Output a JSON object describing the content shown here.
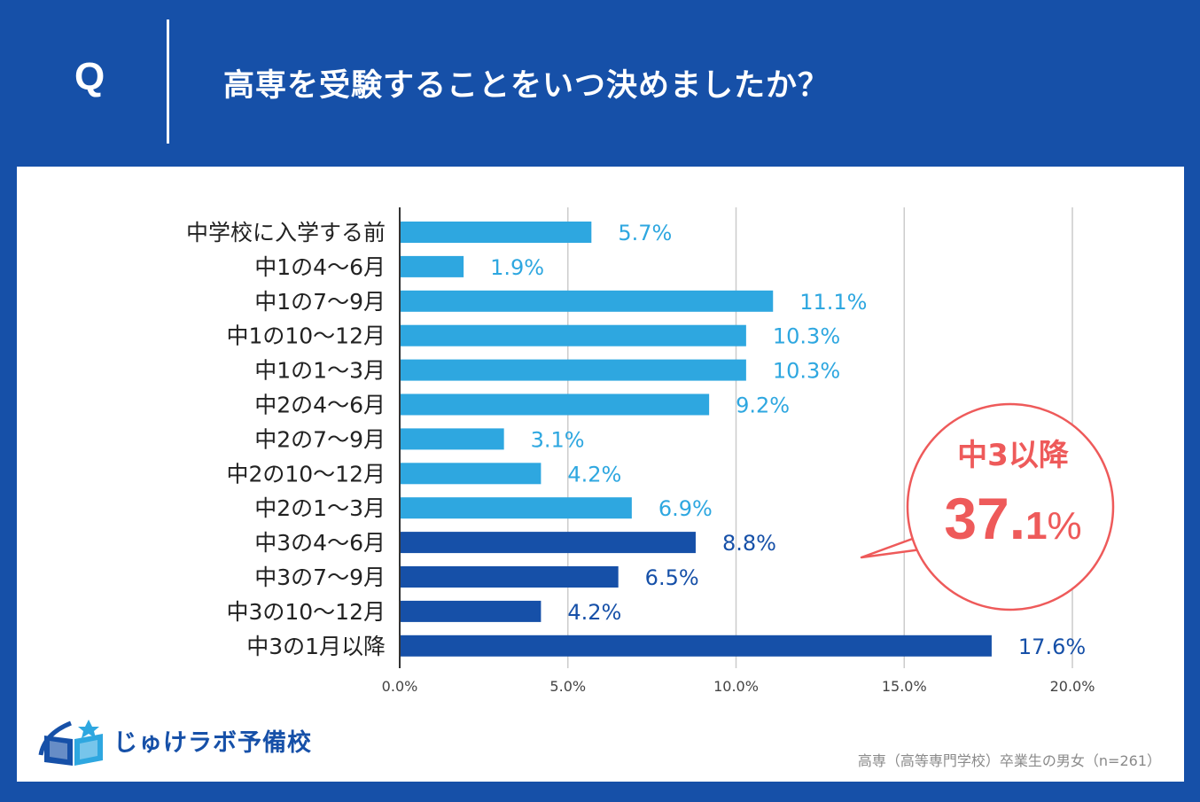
{
  "header": {
    "q_mark": "Q",
    "title": "高専を受験することをいつ決めましたか？"
  },
  "colors": {
    "background": "#1650a8",
    "bar_light": "#2ea7e0",
    "bar_dark": "#1650a8",
    "callout": "#ee5a5a",
    "grid": "#cccccc"
  },
  "chart_data": {
    "type": "bar",
    "orientation": "horizontal",
    "title": "高専を受験することをいつ決めましたか？",
    "xlabel": "",
    "ylabel": "",
    "xlim": [
      0,
      20
    ],
    "x_ticks": [
      "0.0%",
      "5.0%",
      "10.0%",
      "15.0%",
      "20.0%"
    ],
    "grid": true,
    "categories": [
      "中学校に入学する前",
      "中1の4〜6月",
      "中1の7〜9月",
      "中1の10〜12月",
      "中1の1〜3月",
      "中2の4〜6月",
      "中2の7〜9月",
      "中2の10〜12月",
      "中2の1〜3月",
      "中3の4〜6月",
      "中3の7〜9月",
      "中3の10〜12月",
      "中3の1月以降"
    ],
    "values": [
      5.7,
      1.9,
      11.1,
      10.3,
      10.3,
      9.2,
      3.1,
      4.2,
      6.9,
      8.8,
      6.5,
      4.2,
      17.6
    ],
    "value_labels": [
      "5.7%",
      "1.9%",
      "11.1%",
      "10.3%",
      "10.3%",
      "9.2%",
      "3.1%",
      "4.2%",
      "6.9%",
      "8.8%",
      "6.5%",
      "4.2%",
      "17.6%"
    ],
    "highlight_from_index": 9,
    "annotation": {
      "label": "中3以降",
      "value_main": "37.",
      "value_decimal": "1",
      "value_unit": "%"
    }
  },
  "logo": {
    "text": "じゅけラボ予備校"
  },
  "footer": {
    "source": "高専（高等専門学校）卒業生の男女（n=261）"
  }
}
